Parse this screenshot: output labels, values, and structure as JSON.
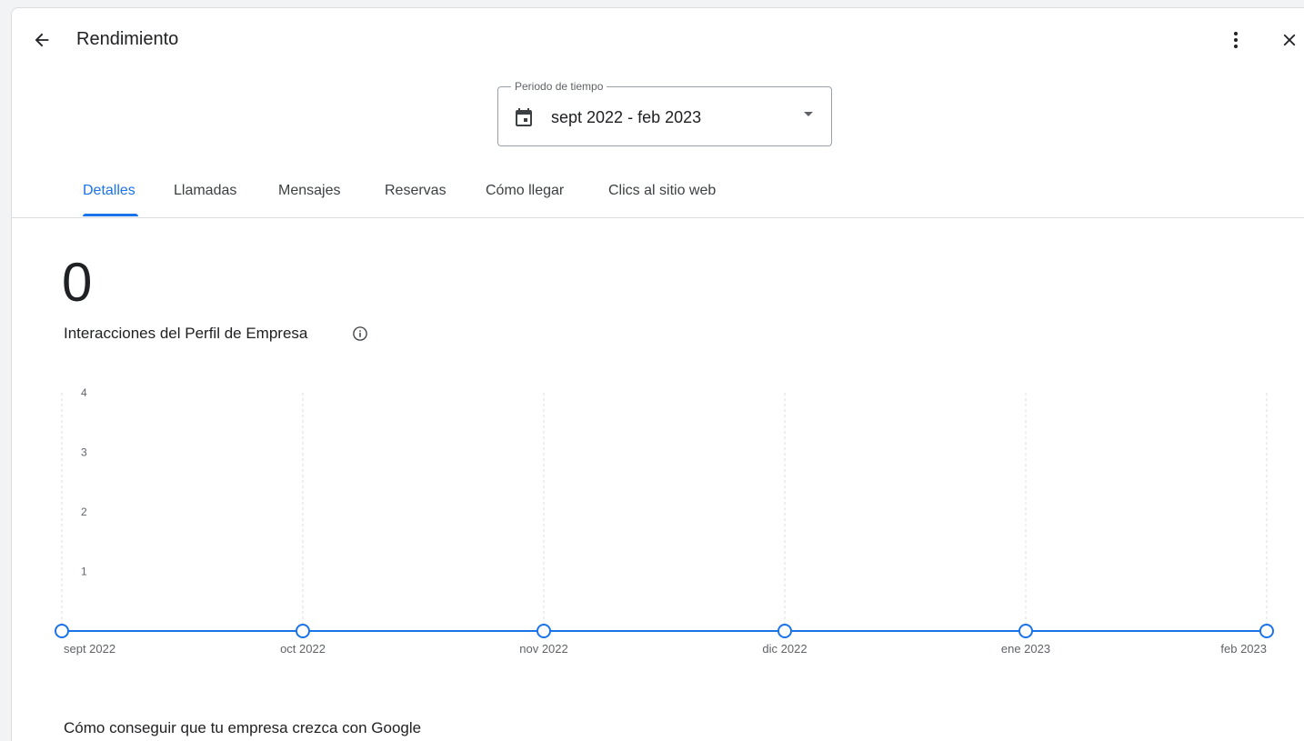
{
  "header": {
    "title": "Rendimiento",
    "back_icon": "arrow-back-icon",
    "more_icon": "more-vert-icon",
    "close_icon": "close-icon"
  },
  "period": {
    "legend": "Periodo de tiempo",
    "value": "sept 2022 - feb 2023",
    "icon": "calendar-icon"
  },
  "tabs": [
    {
      "label": "Detalles",
      "active": true
    },
    {
      "label": "Llamadas",
      "active": false
    },
    {
      "label": "Mensajes",
      "active": false
    },
    {
      "label": "Reservas",
      "active": false
    },
    {
      "label": "Cómo llegar",
      "active": false
    },
    {
      "label": "Clics al sitio web",
      "active": false
    }
  ],
  "metric": {
    "value": "0",
    "label": "Interacciones del Perfil de Empresa",
    "info_icon": "info-icon"
  },
  "chart_data": {
    "type": "line",
    "x": [
      "sept 2022",
      "oct 2022",
      "nov 2022",
      "dic 2022",
      "ene 2023",
      "feb 2023"
    ],
    "series": [
      {
        "values": [
          0,
          0,
          0,
          0,
          0,
          0
        ]
      }
    ],
    "yticks": [
      "1",
      "2",
      "3",
      "4"
    ],
    "ylim": [
      0,
      4
    ],
    "grid": "vertical dashed",
    "colors": {
      "line": "#1a73e8"
    }
  },
  "section": {
    "heading": "Cómo conseguir que tu empresa crezca con Google"
  },
  "colors": {
    "accent": "#1a73e8",
    "divider": "#dadce0",
    "text": "#202124"
  }
}
